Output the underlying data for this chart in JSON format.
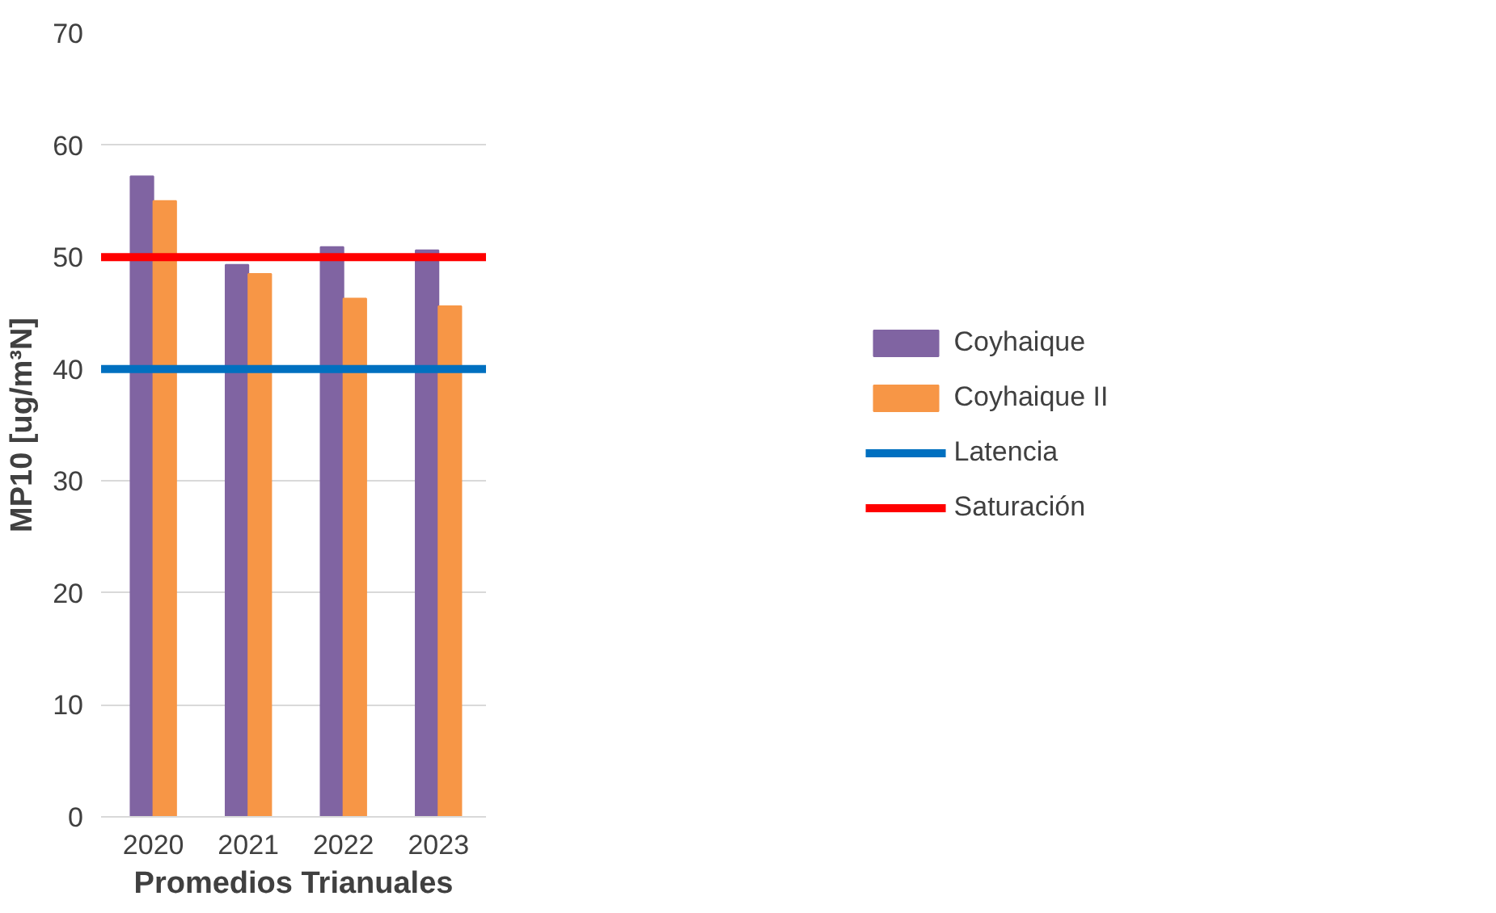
{
  "chart_data": {
    "type": "bar",
    "xlabel": "Promedios Trianuales",
    "ylabel": "MP10 [ug/m³N]",
    "categories": [
      "2020",
      "2021",
      "2022",
      "2023"
    ],
    "series": [
      {
        "name": "Coyhaique",
        "color": "#8064a2",
        "values": [
          57.2,
          49.3,
          50.9,
          50.6
        ]
      },
      {
        "name": "Coyhaique II",
        "color": "#f79646",
        "values": [
          55.0,
          48.5,
          46.3,
          45.6
        ]
      }
    ],
    "ref_lines": [
      {
        "axis": "y",
        "value": 40,
        "label": "Latencia",
        "color": "#0070c0"
      },
      {
        "axis": "y",
        "value": 50,
        "label": "Saturación",
        "color": "#ff0000"
      }
    ],
    "ylim": [
      0,
      70
    ],
    "yticks": [
      0,
      10,
      20,
      30,
      40,
      50,
      60,
      70
    ],
    "grid": "y",
    "legend": "right"
  }
}
